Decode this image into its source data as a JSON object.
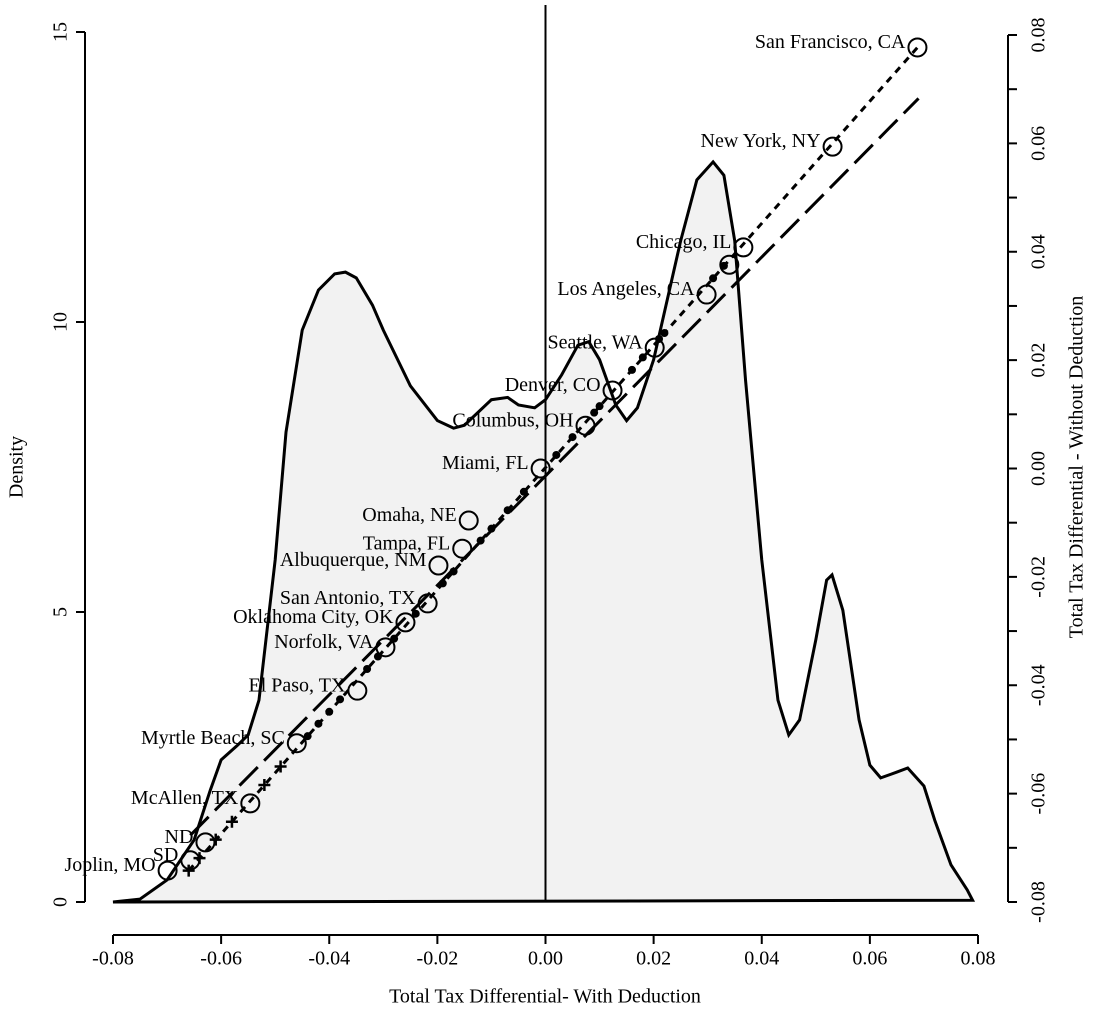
{
  "chart_data": {
    "type": "area",
    "xlabel": "Total Tax Differential- With Deduction",
    "ylabel": "Density",
    "y2label": "Total Tax Differential - Without Deduction",
    "xlim": [
      -0.08,
      0.08
    ],
    "xticks": [
      -0.08,
      -0.06,
      -0.04,
      -0.02,
      {
        "value": 0,
        "label": "0.00"
      },
      0.02,
      0.04,
      0.06,
      0.08
    ],
    "ylim": [
      0,
      15
    ],
    "yticks": [
      0,
      5,
      10,
      15
    ],
    "y2lim": [
      -0.08,
      0.08
    ],
    "y2ticks": [
      -0.08,
      -0.06,
      -0.04,
      -0.02,
      {
        "value": 0,
        "label": "0.00"
      },
      0.02,
      0.04,
      0.06,
      0.08
    ],
    "vline": 0,
    "density": {
      "color": "#f2f2f2",
      "x": [
        -0.08,
        -0.075,
        -0.07,
        -0.065,
        -0.062,
        -0.06,
        -0.057,
        -0.055,
        -0.053,
        -0.05,
        -0.048,
        -0.045,
        -0.042,
        -0.039,
        -0.037,
        -0.035,
        -0.032,
        -0.03,
        -0.025,
        -0.02,
        -0.017,
        -0.015,
        -0.01,
        -0.007,
        -0.005,
        -0.002,
        0,
        0.003,
        0.006,
        0.008,
        0.01,
        0.013,
        0.015,
        0.017,
        0.02,
        0.025,
        0.028,
        0.031,
        0.033,
        0.035,
        0.037,
        0.04,
        0.043,
        0.045,
        0.047,
        0.05,
        0.052,
        0.053,
        0.055,
        0.058,
        0.06,
        0.062,
        0.065,
        0.067,
        0.07,
        0.072,
        0.075,
        0.078,
        0.079
      ],
      "values": [
        0,
        0.05,
        0.38,
        1.07,
        1.93,
        2.45,
        2.7,
        2.88,
        3.48,
        5.9,
        8.1,
        9.86,
        10.55,
        10.83,
        10.86,
        10.76,
        10.29,
        9.86,
        8.9,
        8.3,
        8.17,
        8.22,
        8.66,
        8.7,
        8.57,
        8.52,
        8.66,
        9.09,
        9.6,
        9.66,
        9.35,
        8.57,
        8.3,
        8.52,
        9.35,
        11.4,
        12.45,
        12.76,
        12.53,
        11.4,
        9.0,
        5.9,
        3.48,
        2.88,
        3.14,
        4.52,
        5.55,
        5.64,
        5.03,
        3.14,
        2.36,
        2.14,
        2.24,
        2.31,
        2.0,
        1.41,
        0.64,
        0.21,
        0.03
      ]
    },
    "points": {
      "x": [
        0.0688,
        0.0531,
        0.0366,
        0.034,
        0.0298,
        0.0202,
        0.0124,
        0.0074,
        -0.0009,
        -0.0142,
        -0.0154,
        -0.0198,
        -0.0218,
        -0.0259,
        -0.0296,
        -0.0348,
        -0.046,
        -0.0546,
        -0.0629,
        -0.0657,
        -0.0699,
        -0.066,
        -0.064,
        -0.061,
        -0.058,
        -0.052,
        -0.049,
        -0.044,
        -0.042,
        -0.04,
        -0.038,
        -0.033,
        -0.031,
        -0.028,
        -0.024,
        -0.019,
        -0.017,
        -0.012,
        -0.01,
        -0.007,
        -0.004,
        0.002,
        0.005,
        0.009,
        0.01,
        0.016,
        0.018,
        0.021,
        0.022,
        0.031,
        0.033
      ],
      "y": [
        0.0777,
        0.0594,
        0.0408,
        0.0376,
        0.0321,
        0.0223,
        0.0144,
        0.0079,
        0.0,
        -0.0096,
        -0.0148,
        -0.0179,
        -0.0249,
        -0.0284,
        -0.033,
        -0.041,
        -0.0507,
        -0.0618,
        -0.069,
        -0.0723,
        -0.0742,
        -0.0742,
        -0.0719,
        -0.0685,
        -0.0652,
        -0.0584,
        -0.055,
        -0.0494,
        -0.0471,
        -0.0449,
        -0.0426,
        -0.037,
        -0.0347,
        -0.0314,
        -0.0268,
        -0.0212,
        -0.019,
        -0.0133,
        -0.0111,
        -0.0077,
        -0.0043,
        0.0025,
        0.0058,
        0.0103,
        0.0115,
        0.0182,
        0.0205,
        0.0239,
        0.025,
        0.0351,
        0.0374
      ],
      "labels": [
        "San Francisco, CA",
        "New York, NY",
        "Chicago, IL",
        null,
        "Los Angeles, CA",
        "Seattle, WA",
        "Denver, CO",
        "Columbus, OH",
        "Miami, FL",
        "Omaha, NE",
        "Tampa, FL",
        "Albuquerque, NM",
        "San Antonio, TX",
        "Oklahoma City, OK",
        "Norfolk, VA",
        "El Paso, TX",
        "Myrtle Beach, SC",
        "McAllen, TX",
        "ND",
        "SD",
        "Joplin, MO",
        null,
        null,
        null,
        null,
        null,
        null,
        null,
        null,
        null,
        null,
        null,
        null,
        null,
        null,
        null,
        null,
        null,
        null,
        null,
        null,
        null,
        null,
        null,
        null,
        null,
        null,
        null,
        null,
        null,
        null
      ]
    },
    "fit_lines": [
      {
        "dash": "short",
        "x": [
          -0.066,
          0.0688
        ],
        "y": [
          -0.0742,
          0.0777
        ]
      },
      {
        "dash": "long",
        "x": [
          -0.0657,
          0.069
        ],
        "y": [
          -0.0677,
          0.0683
        ]
      }
    ]
  }
}
